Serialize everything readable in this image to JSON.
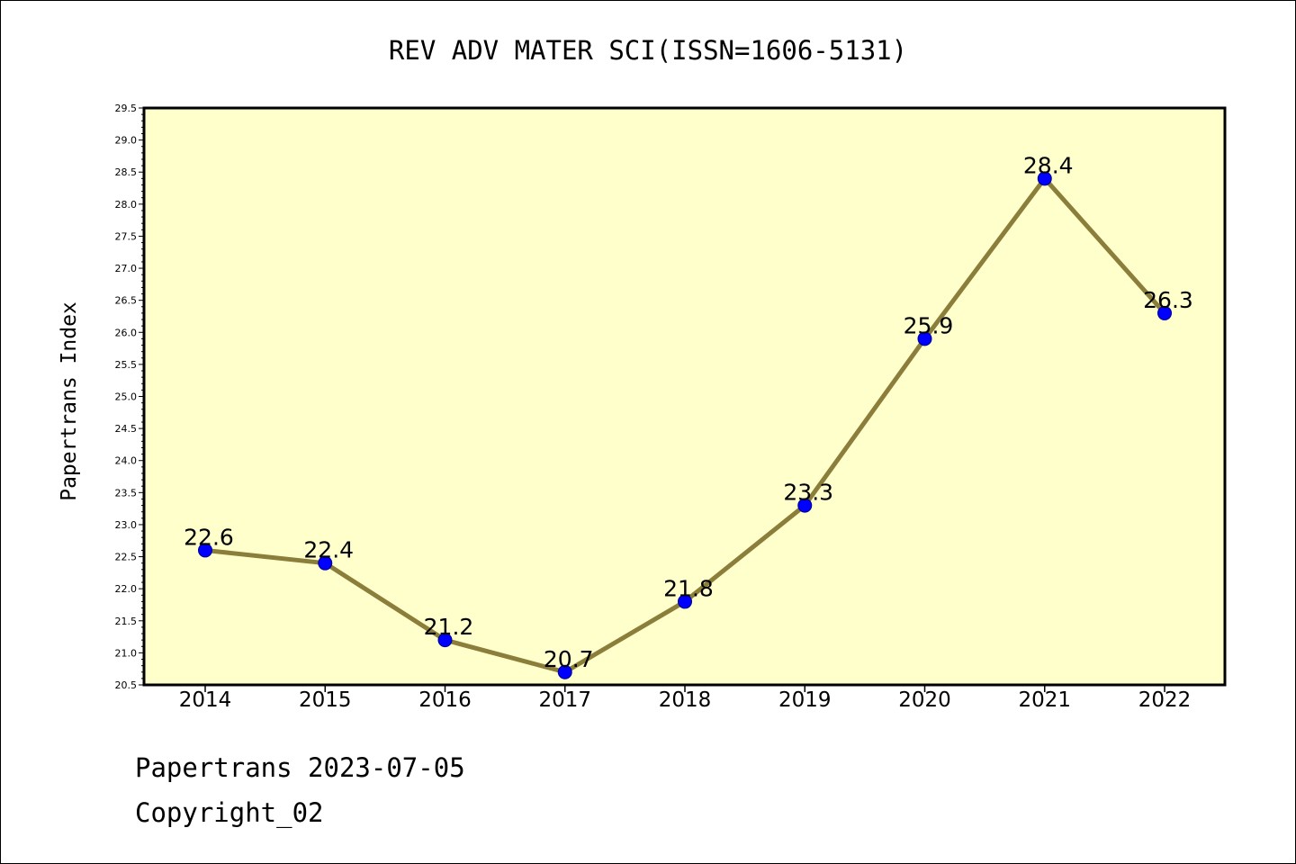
{
  "chart_data": {
    "type": "line",
    "title": "REV ADV MATER SCI(ISSN=1606-5131)",
    "xlabel": "",
    "ylabel": "Papertrans Index",
    "categories": [
      "2014",
      "2015",
      "2016",
      "2017",
      "2018",
      "2019",
      "2020",
      "2021",
      "2022"
    ],
    "series": [
      {
        "values": [
          22.6,
          22.4,
          21.2,
          20.7,
          21.8,
          23.3,
          25.9,
          28.4,
          26.3
        ]
      }
    ],
    "data_labels": [
      "22.6",
      "22.4",
      "21.2",
      "20.7",
      "21.8",
      "23.3",
      "25.9",
      "28.4",
      "26.3"
    ],
    "ylim": [
      20.5,
      29.5
    ],
    "yticks": [
      "20.5",
      "21.0",
      "21.5",
      "22.0",
      "22.5",
      "23.0",
      "23.5",
      "24.0",
      "24.5",
      "25.0",
      "25.5",
      "26.0",
      "26.5",
      "27.0",
      "27.5",
      "28.0",
      "28.5",
      "29.0",
      "29.5"
    ],
    "grid": false,
    "legend": "none",
    "colors": {
      "plot_background": "#ffffcc",
      "line": "#8b7d3a",
      "marker_fill": "#0000ff",
      "marker_edge": "#00008b"
    }
  },
  "footer": {
    "line1": "Papertrans 2023-07-05",
    "line2": "Copyright_02"
  }
}
